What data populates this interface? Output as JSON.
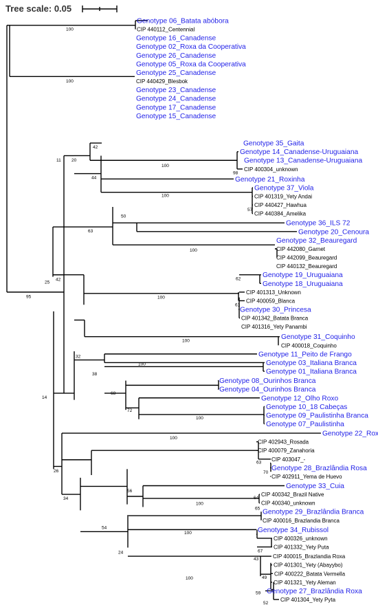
{
  "scale": {
    "label": "Tree scale: 0.05"
  },
  "colors": {
    "genotype": "#1f1fe8",
    "cip": "#000000",
    "branch": "#000000",
    "scale_text": "#333333"
  },
  "leaves": [
    "Genotype 06_Batata abóbora",
    "CIP 440112_Centennial",
    "Genotype 16_Canadense",
    "Genotype 02_Roxa da Cooperativa",
    "Genotype 26_Canadense",
    "Genotype 05_Roxa da Cooperativa",
    "Genotype 25_Canadense",
    "CIP 440429_Blesbok",
    "Genotype 23_Canadense",
    "Genotype 24_Canadense",
    "Genotype 17_Canadense",
    "Genotype 15_Canadense",
    "Genotype 35_Gaita",
    "Genotype 14_Canadense-Uruguaiana",
    "Genotype 13_Canadense-Uruguaiana",
    "CIP 400304_unknown",
    "Genotype 21_Roxinha",
    "Genotype 37_Viola",
    "CIP 401319_Yety Andai",
    "CIP 440427_Hawhua",
    "CIP 440384_Amelika",
    "Genotype 36_ILS 72",
    "Genotype 20_Cenoura",
    "Genotype 32_Beauregard",
    "CIP 442080_Garnet",
    "CIP 442099_Beauregard",
    "CIP 440132_Beauregard",
    "Genotype 19_Uruguaiana",
    "Genotype 18_Uruguaiana",
    "CIP 401313_Unknown",
    "CIP 400059_Blanca",
    "Genotype 30_Princesa",
    "CIP 401342_Batata Branca",
    "CIP 401316_Yety Panambi",
    "Genotype 31_Coquinho",
    "CIP 400018_Coquinho",
    "Genotype 11_Peito de Frango",
    "Genotype 03_Italiana Branca",
    "Genotype 01_Italiana Branca",
    "Genotype 08_Ourinhos Branca",
    "Genotype 04_Ourinhos Branca",
    "Genotype 12_Olho Roxo",
    "Genotype 10_18 Cabeças",
    "Genotype 09_Paulistinha Branca",
    "Genotype 07_Paulistinha",
    "Genotype 22_Roxa",
    "CIP 402943_Rosada",
    "CIP 400079_Zanahoria",
    "CIP 403047_-",
    "Genotype 28_Brazlândia Rosa",
    "CIP 402911_Yema de Huevo",
    "Genotype 33_Cuia",
    "CIP 400342_Brazil Native",
    "CIP 400340_unknown",
    "Genotype 29_Brazlândia Branca",
    "CIP 400016_Brazlandia Branca",
    "Genotype 34_Rubissol",
    "CIP 400326_unknown",
    "CIP 401332_Yety Puta",
    "CIP 400015_Brazlandia Roxa",
    "CIP 401301_Yety (Abayybo)",
    "CIP 400222_Batata Vermella",
    "CIP 401321_Yety Aleman",
    "Genotype 27_Brazlândia Roxa",
    "CIP 401304_Yety Pyta"
  ],
  "bootstrap": [
    "100",
    "100",
    "95",
    "11",
    "20",
    "42",
    "100",
    "98",
    "44",
    "100",
    "57",
    "25",
    "63",
    "50",
    "100",
    "42",
    "100",
    "62",
    "61",
    "14",
    "32",
    "100",
    "38",
    "100",
    "68",
    "72",
    "100",
    "26",
    "100",
    "63",
    "70",
    "34",
    "54",
    "56",
    "100",
    "64",
    "65",
    "24",
    "100",
    "67",
    "100",
    "43",
    "49",
    "59",
    "52"
  ]
}
